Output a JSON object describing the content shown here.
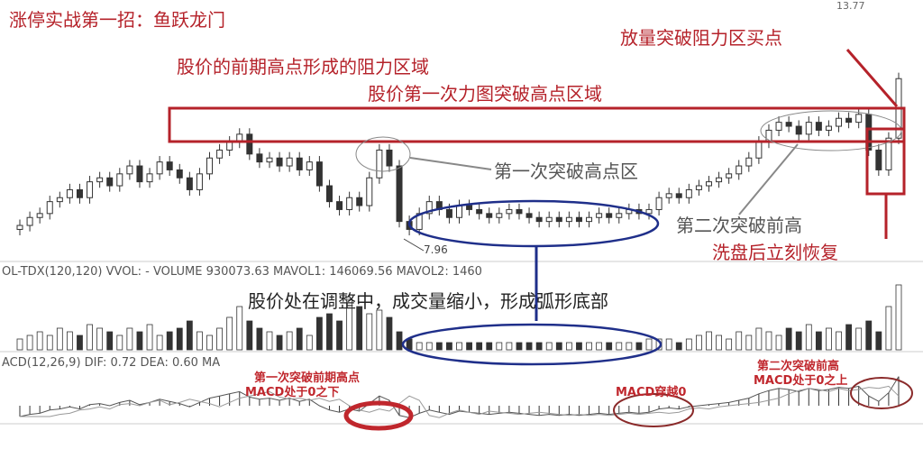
{
  "title": "涨停实战第一招：鱼跃龙门",
  "annotations": {
    "resistance": "股价的前期高点形成的阻力区域",
    "first_attempt": "股价第一次力图突破高点区域",
    "first_break": "第一次突破高点区",
    "second_break": "第二次突破前高",
    "recover": "洗盘后立刻恢复",
    "buy_point": "放量突破阻力区买点",
    "arc_bottom": "股价处在调整中，成交量缩小，形成弧形底部",
    "macd_below_1": "第一次突破前期高点",
    "macd_below_2": "MACD处于0之下",
    "macd_cross": "MACD穿越0",
    "macd_above_1": "第二次突破前高",
    "macd_above_2": "MACD处于0之上"
  },
  "volume_header": "OL-TDX(120,120) VVOL: -  VOLUME 930073.63 MAVOL1: 146069.56 MAVOL2: 1460",
  "macd_header": "ACD(12,26,9) DIF: 0.72 DEA: 0.60 MA",
  "colors": {
    "annotation_red": "#b5222a",
    "ellipse_blue": "#1f2f8a",
    "candle": "#333333"
  },
  "chart_data": {
    "type": "candlestick",
    "high_label": "13.77",
    "low_label": "7.96",
    "closes": [
      8.3,
      8.5,
      8.6,
      8.9,
      9.0,
      9.2,
      9.0,
      9.4,
      9.5,
      9.3,
      9.6,
      9.8,
      9.4,
      9.6,
      9.9,
      9.7,
      9.5,
      9.2,
      9.6,
      10.0,
      10.2,
      10.4,
      10.6,
      10.1,
      9.9,
      10.0,
      9.8,
      10.0,
      9.7,
      9.9,
      9.3,
      8.9,
      8.7,
      9.0,
      8.8,
      9.5,
      10.2,
      9.8,
      8.4,
      8.2,
      8.6,
      8.9,
      8.7,
      8.5,
      8.8,
      8.7,
      8.6,
      8.5,
      8.6,
      8.7,
      8.6,
      8.5,
      8.4,
      8.5,
      8.4,
      8.5,
      8.4,
      8.5,
      8.6,
      8.5,
      8.6,
      8.7,
      8.6,
      8.7,
      9.0,
      9.1,
      9.0,
      9.2,
      9.3,
      9.4,
      9.5,
      9.6,
      9.8,
      10.0,
      10.4,
      10.7,
      10.9,
      10.8,
      10.6,
      10.9,
      10.7,
      10.8,
      11.0,
      10.9,
      11.1,
      10.2,
      9.7,
      10.5,
      12.0
    ],
    "volumes": [
      3,
      4,
      5,
      4,
      6,
      5,
      4,
      7,
      6,
      5,
      4,
      6,
      5,
      7,
      4,
      5,
      6,
      8,
      5,
      4,
      6,
      9,
      12,
      8,
      6,
      5,
      4,
      5,
      6,
      4,
      9,
      10,
      8,
      14,
      12,
      10,
      11,
      9,
      5,
      3,
      2,
      2,
      2,
      2,
      2,
      2,
      2,
      2,
      2,
      2,
      2,
      2,
      2,
      2,
      2,
      2,
      2,
      2,
      2,
      2,
      2,
      2,
      2,
      3,
      3,
      3,
      2,
      3,
      4,
      5,
      4,
      3,
      5,
      4,
      6,
      5,
      4,
      6,
      5,
      7,
      5,
      6,
      5,
      7,
      6,
      8,
      5,
      12,
      18
    ]
  }
}
